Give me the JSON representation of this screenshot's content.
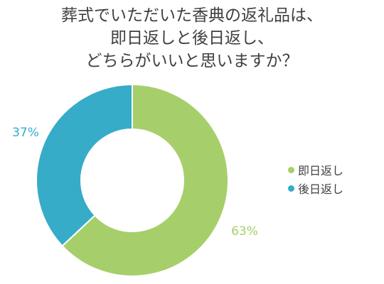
{
  "chart_data": {
    "type": "pie",
    "variant": "donut",
    "title_lines": [
      "葬式でいただいた香典の返礼品は、",
      "即日返しと後日返し、",
      "どちらがいいと思いますか？"
    ],
    "categories": [
      "即日返し",
      "後日返し"
    ],
    "values": [
      63,
      37
    ],
    "unit": "%",
    "data_labels": [
      "63%",
      "37%"
    ],
    "colors": [
      "#a6cf6b",
      "#36acc8"
    ],
    "legend_position": "right"
  }
}
